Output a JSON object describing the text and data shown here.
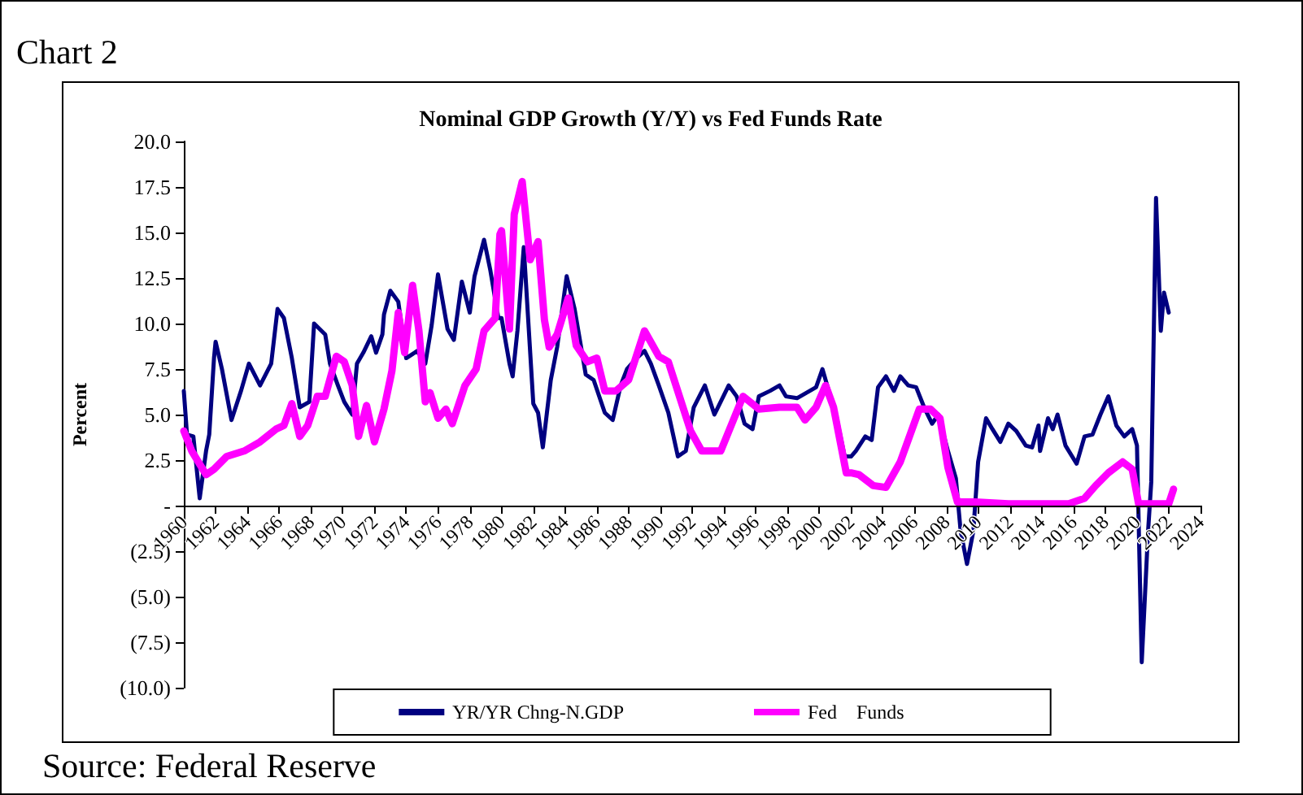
{
  "chart_data": {
    "type": "line",
    "title": "Nominal GDP Growth (Y/Y) vs Fed Funds Rate",
    "ylabel": "Percent",
    "annotations": [
      "Chart 2",
      "Source: Federal Reserve"
    ],
    "series": [
      {
        "name": "YR/YR Chng-N.GDP",
        "color": "#000080",
        "x": [
          1960.0,
          1960.2,
          1960.6,
          1961.0,
          1961.4,
          1961.6,
          1961.9,
          1962.0,
          1962.4,
          1963.0,
          1963.6,
          1964.1,
          1964.8,
          1965.5,
          1965.9,
          1966.3,
          1966.8,
          1967.3,
          1967.9,
          1968.2,
          1968.9,
          1969.2,
          1969.7,
          1970.1,
          1970.6,
          1970.9,
          1971.3,
          1971.8,
          1972.1,
          1972.5,
          1972.6,
          1973.0,
          1973.5,
          1974.0,
          1974.7,
          1975.2,
          1975.6,
          1976.0,
          1976.6,
          1977.0,
          1977.5,
          1978.0,
          1978.3,
          1978.9,
          1979.3,
          1979.8,
          1980.0,
          1980.5,
          1980.7,
          1981.0,
          1981.4,
          1982.0,
          1982.3,
          1982.6,
          1983.1,
          1983.5,
          1984.1,
          1984.6,
          1985.3,
          1985.8,
          1986.5,
          1987.0,
          1987.5,
          1987.9,
          1988.5,
          1989.0,
          1989.4,
          1989.9,
          1990.5,
          1991.1,
          1991.6,
          1992.1,
          1992.8,
          1993.4,
          1994.3,
          1994.8,
          1995.3,
          1995.8,
          1996.2,
          1996.9,
          1997.5,
          1997.9,
          1998.6,
          1999.2,
          1999.8,
          2000.2,
          2000.6,
          2001.1,
          2001.6,
          2002.0,
          2002.3,
          2002.9,
          2003.3,
          2003.7,
          2004.2,
          2004.7,
          2005.1,
          2005.6,
          2006.1,
          2006.6,
          2007.1,
          2007.5,
          2008.1,
          2008.6,
          2008.9,
          2009.3,
          2009.7,
          2010.0,
          2010.5,
          2010.9,
          2011.4,
          2011.9,
          2012.4,
          2013.0,
          2013.4,
          2013.8,
          2013.9,
          2014.4,
          2014.7,
          2015.0,
          2015.5,
          2016.2,
          2016.7,
          2017.2,
          2017.7,
          2018.2,
          2018.7,
          2019.2,
          2019.7,
          2020.0,
          2020.3,
          2020.7,
          2020.9,
          2021.2,
          2021.5,
          2021.7,
          2022.0
        ],
        "values": [
          6.3,
          3.9,
          3.8,
          0.4,
          3.0,
          3.9,
          8.1,
          9.0,
          7.5,
          4.7,
          6.3,
          7.8,
          6.6,
          7.8,
          10.8,
          10.3,
          8.1,
          5.4,
          5.7,
          10.0,
          9.4,
          7.8,
          6.6,
          5.7,
          5.0,
          7.8,
          8.4,
          9.3,
          8.4,
          9.4,
          10.5,
          11.8,
          11.2,
          8.1,
          8.5,
          7.8,
          9.9,
          12.7,
          9.7,
          9.1,
          12.3,
          10.6,
          12.6,
          14.6,
          12.9,
          10.3,
          10.3,
          7.8,
          7.1,
          9.6,
          14.2,
          5.6,
          5.1,
          3.2,
          6.9,
          8.7,
          12.6,
          10.8,
          7.2,
          6.9,
          5.1,
          4.7,
          6.6,
          7.5,
          8.1,
          8.5,
          7.8,
          6.6,
          5.1,
          2.7,
          3.0,
          5.4,
          6.6,
          5.0,
          6.6,
          6.0,
          4.5,
          4.2,
          6.0,
          6.3,
          6.6,
          6.0,
          5.9,
          6.2,
          6.5,
          7.5,
          6.3,
          4.8,
          2.7,
          2.7,
          3.0,
          3.8,
          3.6,
          6.5,
          7.1,
          6.3,
          7.1,
          6.6,
          6.5,
          5.4,
          4.5,
          5.0,
          3.0,
          1.5,
          -1.4,
          -3.2,
          -1.4,
          2.4,
          4.8,
          4.2,
          3.5,
          4.5,
          4.1,
          3.3,
          3.2,
          4.4,
          3.0,
          4.8,
          4.2,
          5.0,
          3.3,
          2.3,
          3.8,
          3.9,
          5.0,
          6.0,
          4.4,
          3.8,
          4.2,
          3.3,
          -8.6,
          -1.4,
          1.3,
          16.9,
          9.6,
          11.7,
          10.6
        ]
      },
      {
        "name": "Fed    Funds",
        "color": "#ff00ff",
        "x": [
          1960.0,
          1960.5,
          1961.4,
          1961.9,
          1962.7,
          1963.8,
          1964.8,
          1965.8,
          1966.3,
          1966.8,
          1967.3,
          1967.8,
          1968.4,
          1968.9,
          1969.6,
          1970.1,
          1970.6,
          1971.0,
          1971.5,
          1972.0,
          1972.6,
          1973.1,
          1973.5,
          1973.9,
          1974.4,
          1974.8,
          1975.2,
          1975.5,
          1976.0,
          1976.5,
          1976.9,
          1977.7,
          1978.4,
          1978.9,
          1979.6,
          1979.9,
          1980.0,
          1980.5,
          1980.8,
          1981.3,
          1981.8,
          1982.3,
          1982.7,
          1983.0,
          1983.5,
          1984.2,
          1984.7,
          1985.4,
          1986.0,
          1986.5,
          1987.2,
          1988.0,
          1989.0,
          1989.9,
          1990.5,
          1991.2,
          1991.9,
          1992.6,
          1993.8,
          1995.2,
          1996.2,
          1997.5,
          1998.6,
          1999.1,
          1999.8,
          2000.4,
          2000.9,
          2001.7,
          2002.0,
          2002.5,
          2003.4,
          2004.2,
          2005.1,
          2006.3,
          2007.0,
          2007.6,
          2008.1,
          2008.7,
          2009.8,
          2011.9,
          2013.9,
          2015.7,
          2016.7,
          2017.4,
          2018.2,
          2019.1,
          2019.7,
          2020.1,
          2022.0,
          2022.3
        ],
        "values": [
          4.1,
          3.0,
          1.7,
          2.0,
          2.7,
          3.0,
          3.5,
          4.2,
          4.4,
          5.6,
          3.8,
          4.4,
          6.0,
          6.0,
          8.2,
          7.9,
          6.6,
          3.8,
          5.5,
          3.5,
          5.3,
          7.4,
          10.6,
          8.4,
          12.1,
          9.6,
          5.7,
          6.2,
          4.8,
          5.3,
          4.5,
          6.6,
          7.5,
          9.6,
          10.3,
          14.9,
          15.1,
          9.7,
          16.0,
          17.8,
          13.5,
          14.5,
          10.2,
          8.7,
          9.4,
          11.4,
          8.8,
          7.9,
          8.1,
          6.3,
          6.3,
          6.9,
          9.6,
          8.2,
          7.9,
          6.0,
          4.1,
          3.0,
          3.0,
          6.0,
          5.3,
          5.4,
          5.4,
          4.7,
          5.4,
          6.6,
          5.4,
          1.8,
          1.8,
          1.7,
          1.1,
          1.0,
          2.4,
          5.3,
          5.3,
          4.8,
          2.1,
          0.2,
          0.2,
          0.1,
          0.1,
          0.1,
          0.4,
          1.1,
          1.8,
          2.4,
          2.0,
          0.1,
          0.1,
          0.9
        ]
      }
    ],
    "xlim": [
      1960,
      2024
    ],
    "xticks": [
      1960,
      1962,
      1964,
      1966,
      1968,
      1970,
      1972,
      1974,
      1976,
      1978,
      1980,
      1982,
      1984,
      1986,
      1988,
      1990,
      1992,
      1994,
      1996,
      1998,
      2000,
      2002,
      2004,
      2006,
      2008,
      2010,
      2012,
      2014,
      2016,
      2018,
      2020,
      2022,
      2024
    ],
    "ylim": [
      -10,
      20
    ],
    "yticks": [
      {
        "value": 20,
        "label": "20.0"
      },
      {
        "value": 17.5,
        "label": "17.5"
      },
      {
        "value": 15,
        "label": "15.0"
      },
      {
        "value": 12.5,
        "label": "12.5"
      },
      {
        "value": 10,
        "label": "10.0"
      },
      {
        "value": 7.5,
        "label": "7.5"
      },
      {
        "value": 5,
        "label": "5.0"
      },
      {
        "value": 2.5,
        "label": "2.5"
      },
      {
        "value": 0,
        "label": "-"
      },
      {
        "value": -2.5,
        "label": "(2.5)"
      },
      {
        "value": -5,
        "label": "(5.0)"
      },
      {
        "value": -7.5,
        "label": "(7.5)"
      },
      {
        "value": -10,
        "label": "(10.0)"
      }
    ],
    "grid": false,
    "legend": "bottom",
    "marker": "none",
    "line_style": "solid"
  }
}
